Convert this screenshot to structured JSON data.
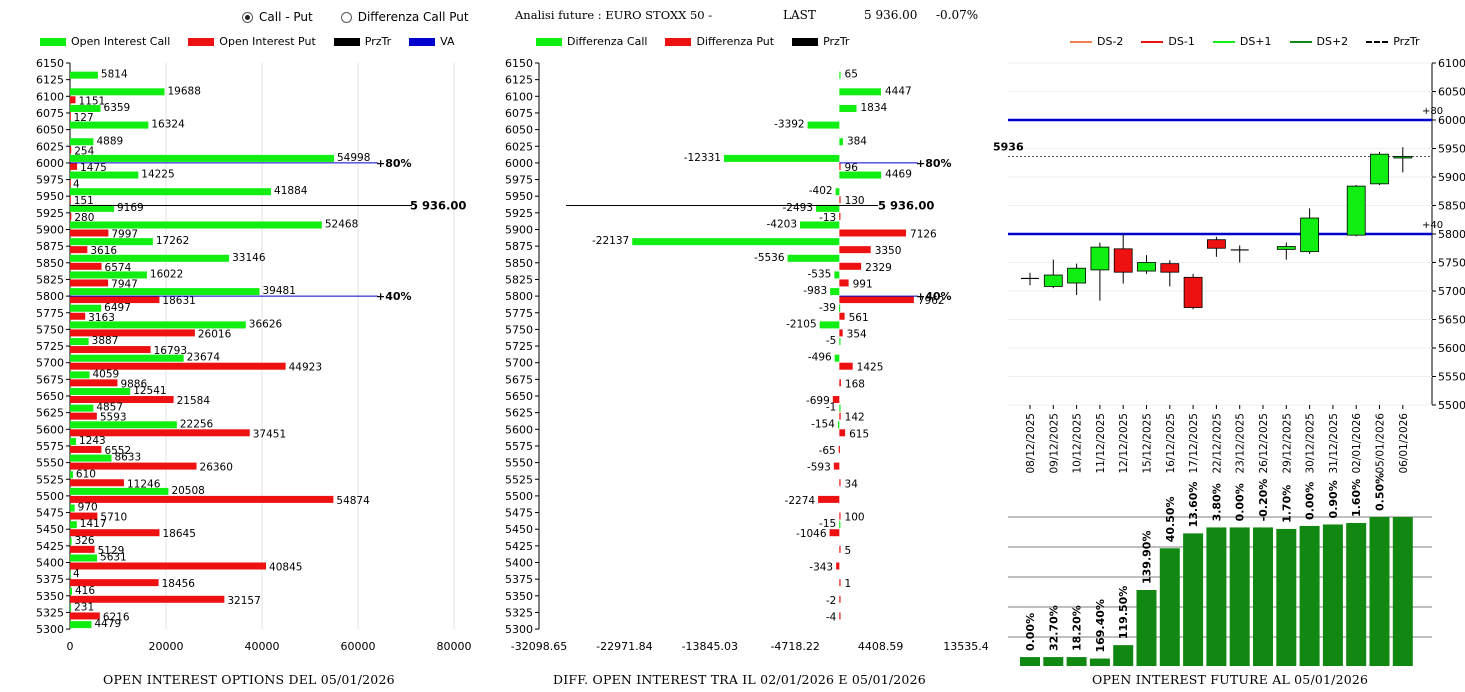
{
  "header": {
    "radio_call_put": "Call - Put",
    "radio_diff": "Differenza Call Put",
    "analisi": "Analisi future : EURO STOXX 50 -",
    "last_label": "LAST",
    "last_value": "5 936.00",
    "last_change": "-0.07%"
  },
  "colors": {
    "green": "#11ee11",
    "red": "#ee1111",
    "dark_green": "#118811",
    "blue": "#0000cc"
  },
  "chart_data": [
    {
      "type": "bar",
      "title": "OPEN INTEREST OPTIONS DEL 05/01/2026",
      "legend": [
        "Open Interest Call",
        "Open Interest Put",
        "PrzTr",
        "VA"
      ],
      "strikes": [
        6150,
        6125,
        6100,
        6075,
        6050,
        6025,
        6000,
        5975,
        5950,
        5925,
        5900,
        5875,
        5850,
        5825,
        5800,
        5775,
        5750,
        5725,
        5700,
        5675,
        5650,
        5625,
        5600,
        5575,
        5550,
        5525,
        5500,
        5475,
        5450,
        5425,
        5400,
        5375,
        5350,
        5325,
        5300
      ],
      "calls": [
        null,
        5814,
        19688,
        6359,
        16324,
        4889,
        54998,
        14225,
        41884,
        9169,
        52468,
        17262,
        33146,
        16022,
        39481,
        6497,
        36626,
        3887,
        23674,
        4059,
        12541,
        4857,
        22256,
        1243,
        8633,
        610,
        20508,
        970,
        1417,
        326,
        5631,
        4,
        416,
        231,
        4479
      ],
      "puts": [
        null,
        null,
        1151,
        127,
        null,
        254,
        1475,
        4,
        151,
        280,
        7997,
        3616,
        6574,
        7947,
        18631,
        3163,
        26016,
        16793,
        44923,
        9886,
        21584,
        5593,
        37451,
        6552,
        26360,
        11246,
        54874,
        5710,
        18645,
        5129,
        40845,
        18456,
        32157,
        6216,
        null
      ],
      "x_ticks": [
        "0",
        "20000",
        "40000",
        "60000",
        "80000"
      ],
      "xlim": [
        0,
        80000
      ],
      "annotations": {
        "price": "5 936.00",
        "va_high": "+80%",
        "va_low": "+40%"
      }
    },
    {
      "type": "bar",
      "title": "DIFF. OPEN INTEREST TRA IL 02/01/2026 E 05/01/2026",
      "legend": [
        "Differenza Call",
        "Differenza Put",
        "PrzTr"
      ],
      "strikes": [
        6150,
        6125,
        6100,
        6075,
        6050,
        6025,
        6000,
        5975,
        5950,
        5925,
        5900,
        5875,
        5850,
        5825,
        5800,
        5775,
        5750,
        5725,
        5700,
        5675,
        5650,
        5625,
        5600,
        5575,
        5550,
        5525,
        5500,
        5475,
        5450,
        5425,
        5400,
        5375,
        5350,
        5325,
        5300
      ],
      "call_diff": [
        null,
        65,
        4447,
        1834,
        -3392,
        384,
        -12331,
        4469,
        -402,
        -2493,
        -4203,
        -22137,
        -5536,
        -535,
        -983,
        -39,
        -2105,
        -5,
        -496,
        null,
        null,
        -1,
        -154,
        null,
        null,
        null,
        null,
        null,
        -15,
        null,
        null,
        null,
        null,
        null,
        null
      ],
      "put_diff": [
        null,
        null,
        null,
        null,
        null,
        null,
        96,
        null,
        130,
        -13,
        7126,
        3350,
        2329,
        991,
        7962,
        561,
        354,
        null,
        1425,
        168,
        -699,
        142,
        615,
        -65,
        -593,
        34,
        -2274,
        100,
        -1046,
        5,
        -343,
        1,
        -2,
        -4,
        null
      ],
      "x_ticks": [
        "-32098.65",
        "-22971.84",
        "-13845.03",
        "-4718.22",
        "4408.59",
        "13535.4"
      ],
      "xlim": [
        -32098.65,
        13535.4
      ],
      "annotations": {
        "price": "5 936.00",
        "va_high": "+80%",
        "va_low": "+40%"
      }
    },
    {
      "type": "candlestick",
      "title": "OPEN INTEREST FUTURE AL 05/01/2026",
      "legend": [
        "DS-2",
        "DS-1",
        "DS+1",
        "DS+2",
        "PrzTr"
      ],
      "dates": [
        "08/12/2025",
        "09/12/2025",
        "10/12/2025",
        "11/12/2025",
        "12/12/2025",
        "15/12/2025",
        "16/12/2025",
        "17/12/2025",
        "22/12/2025",
        "23/12/2025",
        "26/12/2025",
        "29/12/2025",
        "30/12/2025",
        "31/12/2025",
        "02/01/2026",
        "05/01/2026",
        "06/01/2026"
      ],
      "candles": [
        {
          "o": 5722,
          "h": 5732,
          "l": 5710,
          "c": 5722
        },
        {
          "o": 5708,
          "h": 5755,
          "l": 5705,
          "c": 5728
        },
        {
          "o": 5714,
          "h": 5748,
          "l": 5693,
          "c": 5740
        },
        {
          "o": 5737,
          "h": 5785,
          "l": 5683,
          "c": 5777
        },
        {
          "o": 5774,
          "h": 5800,
          "l": 5713,
          "c": 5733
        },
        {
          "o": 5735,
          "h": 5763,
          "l": 5730,
          "c": 5750
        },
        {
          "o": 5748,
          "h": 5754,
          "l": 5708,
          "c": 5733
        },
        {
          "o": 5724,
          "h": 5730,
          "l": 5668,
          "c": 5671
        },
        {
          "o": 5790,
          "h": 5795,
          "l": 5760,
          "c": 5775
        },
        {
          "o": 5772,
          "h": 5780,
          "l": 5750,
          "c": 5772
        },
        null,
        {
          "o": 5773,
          "h": 5785,
          "l": 5755,
          "c": 5778
        },
        {
          "o": 5769,
          "h": 5845,
          "l": 5765,
          "c": 5828
        },
        null,
        {
          "o": 5798,
          "h": 5886,
          "l": 5796,
          "c": 5884
        },
        {
          "o": 5888,
          "h": 5944,
          "l": 5886,
          "c": 5940
        },
        {
          "o": 5935,
          "h": 5952,
          "l": 5908,
          "c": 5936
        }
      ],
      "y_ticks": [
        "6100",
        "6050",
        "6000",
        "5950",
        "5900",
        "5850",
        "5800",
        "5750",
        "5700",
        "5650",
        "5600",
        "5550",
        "5500"
      ],
      "ylim": [
        5500,
        6100
      ],
      "levels": [
        {
          "value": 6000,
          "label": "+80"
        },
        {
          "value": 5800,
          "label": "+40"
        }
      ],
      "price_line": 5936,
      "price_label": "5936",
      "oi_pct": [
        0.0,
        32.7,
        18.2,
        169.4,
        119.5,
        139.9,
        40.5,
        13.6,
        3.8,
        0.0,
        -0.2,
        1.7,
        0.0,
        0.9,
        1.6,
        0.5
      ],
      "oi_labels": [
        "0.00%",
        "32.70%",
        "18.20%",
        "169.40%",
        "119.50%",
        "139.90%",
        "40.50%",
        "13.60%",
        "3.80%",
        "0.00%",
        "-0.20%",
        "1.70%",
        "0.00%",
        "0.90%",
        "1.60%",
        "0.50%"
      ],
      "oi_level": [
        0.06,
        0.06,
        0.06,
        0.05,
        0.14,
        0.51,
        0.79,
        0.89,
        0.93,
        0.93,
        0.93,
        0.92,
        0.94,
        0.95,
        0.96,
        1.0,
        1.0
      ]
    }
  ]
}
